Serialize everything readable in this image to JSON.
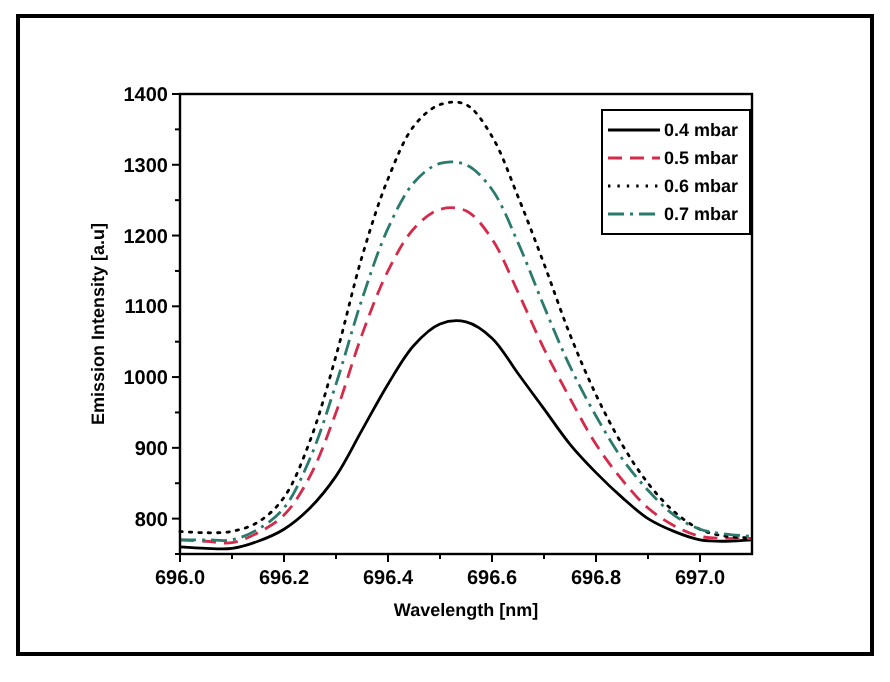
{
  "chart_data": {
    "type": "line",
    "xlabel": "Wavelength [nm]",
    "ylabel": "Emission Intensity [a.u]",
    "x": [
      696.0,
      696.05,
      696.1,
      696.15,
      696.2,
      696.25,
      696.3,
      696.35,
      696.4,
      696.45,
      696.5,
      696.55,
      696.6,
      696.65,
      696.7,
      696.75,
      696.8,
      696.85,
      696.9,
      696.95,
      697.0,
      697.05,
      697.1
    ],
    "series": [
      {
        "name": "0.4 mbar",
        "color": "#000000",
        "line_style": "solid",
        "values": [
          760,
          758,
          758,
          768,
          785,
          815,
          860,
          925,
          990,
          1045,
          1075,
          1078,
          1055,
          1005,
          955,
          905,
          865,
          830,
          800,
          782,
          770,
          768,
          770
        ]
      },
      {
        "name": "0.5 mbar",
        "color": "#d62a4a",
        "line_style": "dashed",
        "values": [
          770,
          768,
          766,
          780,
          805,
          860,
          950,
          1060,
          1150,
          1210,
          1237,
          1235,
          1195,
          1120,
          1040,
          970,
          905,
          855,
          815,
          790,
          775,
          772,
          772
        ]
      },
      {
        "name": "0.6 mbar",
        "color": "#000000",
        "line_style": "dotted",
        "values": [
          782,
          780,
          782,
          795,
          830,
          910,
          1030,
          1170,
          1280,
          1355,
          1385,
          1385,
          1340,
          1255,
          1160,
          1060,
          975,
          905,
          850,
          810,
          785,
          775,
          773
        ]
      },
      {
        "name": "0.7 mbar",
        "color": "#2a7a6e",
        "line_style": "dashdot",
        "values": [
          770,
          770,
          770,
          785,
          815,
          885,
          990,
          1110,
          1210,
          1275,
          1302,
          1300,
          1265,
          1190,
          1100,
          1015,
          945,
          885,
          840,
          805,
          785,
          778,
          775
        ]
      }
    ],
    "xlim": [
      696.0,
      697.1
    ],
    "xticks": [
      {
        "value": 696.0,
        "label": "696.0"
      },
      {
        "value": 696.1,
        "label": null
      },
      {
        "value": 696.2,
        "label": "696.2"
      },
      {
        "value": 696.3,
        "label": null
      },
      {
        "value": 696.4,
        "label": "696.4"
      },
      {
        "value": 696.5,
        "label": null
      },
      {
        "value": 696.6,
        "label": "696.6"
      },
      {
        "value": 696.7,
        "label": null
      },
      {
        "value": 696.8,
        "label": "696.8"
      },
      {
        "value": 696.9,
        "label": null
      },
      {
        "value": 697.0,
        "label": "697.0"
      }
    ],
    "ylim": [
      750,
      1400
    ],
    "yticks": [
      {
        "value": 750,
        "label": null
      },
      800,
      {
        "value": 850,
        "label": null
      },
      900,
      {
        "value": 950,
        "label": null
      },
      1000,
      {
        "value": 1050,
        "label": null
      },
      1100,
      {
        "value": 1150,
        "label": null
      },
      1200,
      {
        "value": 1250,
        "label": null
      },
      1300,
      {
        "value": 1350,
        "label": null
      },
      1400
    ],
    "grid": false,
    "legend": "top right"
  }
}
